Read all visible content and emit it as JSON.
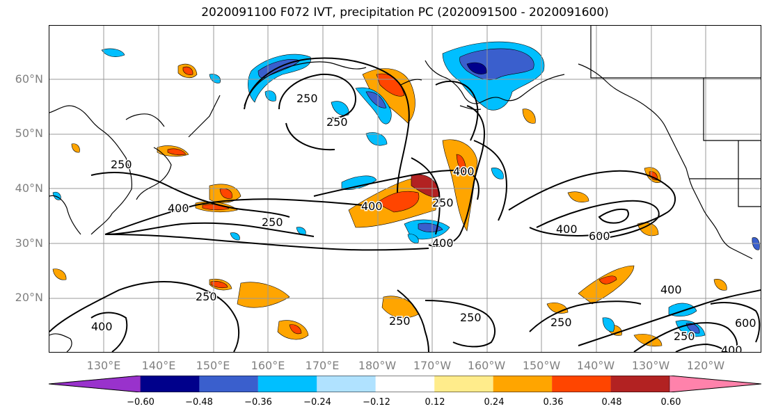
{
  "title": "2020091100 F072 IVT, precipitation PC (2020091500 - 2020091600)",
  "lat_labels": [
    "60°N",
    "50°N",
    "40°N",
    "30°N",
    "20°N"
  ],
  "lon_labels": [
    "130°E",
    "140°E",
    "150°E",
    "160°E",
    "170°E",
    "180°W",
    "170°W",
    "160°W",
    "150°W",
    "140°W",
    "130°W",
    "120°W"
  ],
  "contour_labels": [
    "250",
    "250",
    "250",
    "400",
    "250",
    "400",
    "250",
    "400",
    "400",
    "600",
    "400",
    "250",
    "400",
    "250",
    "250",
    "250",
    "400",
    "600",
    "250",
    "400"
  ],
  "colorbar": {
    "colors": [
      "#9932cc",
      "#00008b",
      "#3a5fcd",
      "#00bfff",
      "#b0e2ff",
      "#ffffff",
      "#ffec8b",
      "#ffa500",
      "#ff4500",
      "#b22222",
      "#ff82ab"
    ],
    "ticks": [
      "−0.60",
      "−0.48",
      "−0.36",
      "−0.24",
      "−0.12",
      "0.12",
      "0.24",
      "0.36",
      "0.48",
      "0.60"
    ]
  }
}
